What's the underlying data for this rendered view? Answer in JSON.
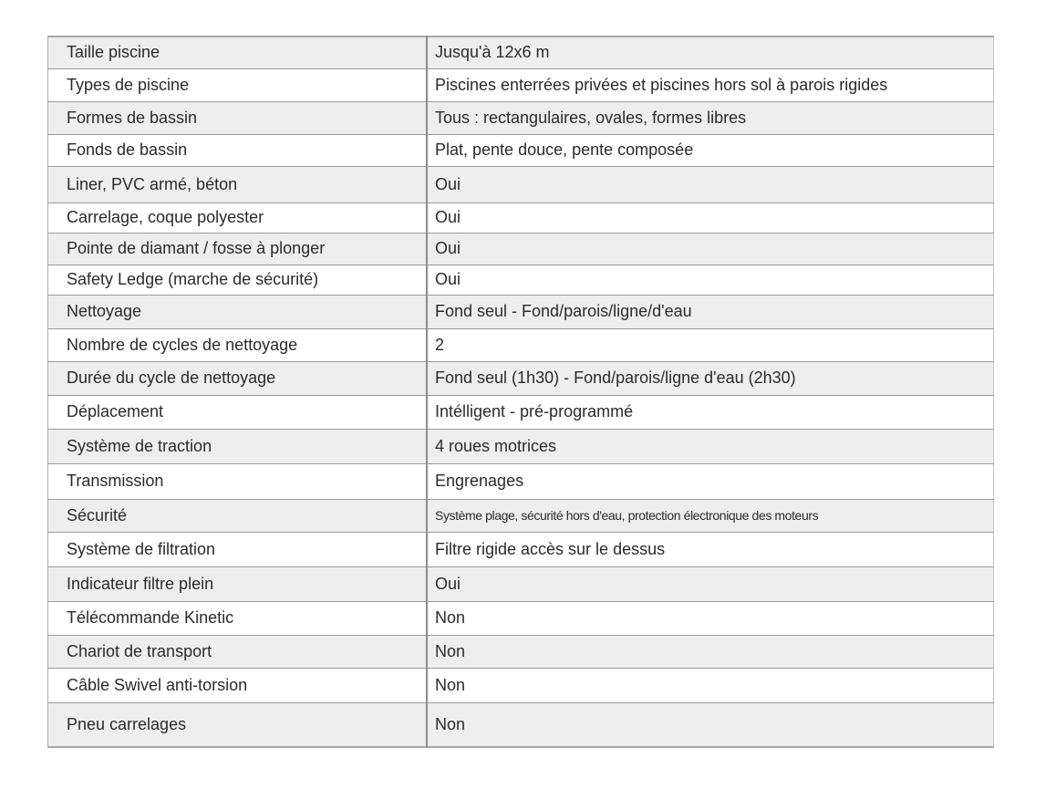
{
  "colors": {
    "row_alt": "#eeeeee",
    "border": "#9a9a9a",
    "text": "#2b2b2b"
  },
  "rows": [
    {
      "label": "Taille piscine",
      "value": "Jusqu'à 12x6 m"
    },
    {
      "label": "Types de piscine",
      "value": "Piscines enterrées privées et piscines hors sol à parois rigides"
    },
    {
      "label": "Formes de bassin",
      "value": "Tous : rectangulaires, ovales, formes libres"
    },
    {
      "label": "Fonds de bassin",
      "value": "Plat, pente douce, pente composée"
    },
    {
      "label": "Liner, PVC armé, béton",
      "value": "Oui"
    },
    {
      "label": "Carrelage, coque polyester",
      "value": "Oui"
    },
    {
      "label": "Pointe de diamant / fosse à plonger",
      "value": "Oui"
    },
    {
      "label": "Safety Ledge (marche de sécurité)",
      "value": "Oui"
    },
    {
      "label": "Nettoyage",
      "value": "Fond seul - Fond/parois/ligne/d'eau"
    },
    {
      "label": "Nombre de cycles de nettoyage",
      "value": "2"
    },
    {
      "label": "Durée du cycle de nettoyage",
      "value": "Fond seul (1h30) - Fond/parois/ligne d'eau (2h30)"
    },
    {
      "label": "Déplacement",
      "value": "Intélligent - pré-programmé"
    },
    {
      "label": "Système de traction",
      "value": "4 roues motrices"
    },
    {
      "label": "Transmission",
      "value": "Engrenages"
    },
    {
      "label": "Sécurité",
      "value": "Système plage, sécurité hors d'eau, protection électronique des moteurs"
    },
    {
      "label": "Système de filtration",
      "value": "Filtre rigide accès sur le dessus"
    },
    {
      "label": "Indicateur filtre plein",
      "value": "Oui"
    },
    {
      "label": "Télécommande  Kinetic",
      "value": "Non"
    },
    {
      "label": "Chariot de transport",
      "value": "Non"
    },
    {
      "label": "Câble Swivel anti-torsion",
      "value": "Non"
    },
    {
      "label": "Pneu carrelages",
      "value": "Non"
    }
  ]
}
